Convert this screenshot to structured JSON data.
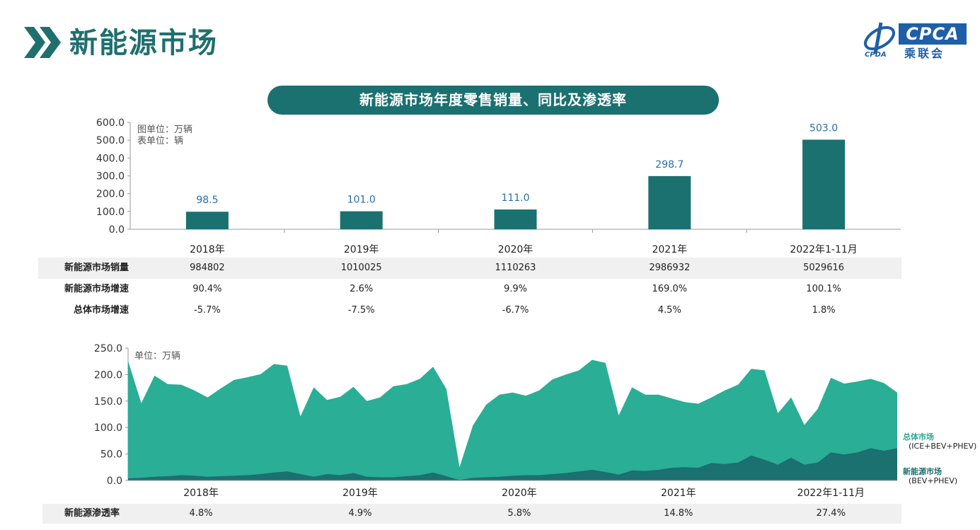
{
  "header": {
    "title": "新能源市场",
    "logo_text": "CPCA",
    "logo_cn": "乘联会",
    "logo_small": "CPDA"
  },
  "banner": {
    "title": "新能源市场年度零售销量、同比及渗透率"
  },
  "colors": {
    "bar": "#1b7070",
    "total_area": "#2aae95",
    "nev_area": "#1b7070",
    "banner": "#1b7070",
    "value_label": "#2a6fa8"
  },
  "chart_data": [
    {
      "type": "bar",
      "title": "",
      "unit_note_1": "图单位：万辆",
      "unit_note_2": "表单位：辆",
      "categories": [
        "2018年",
        "2019年",
        "2020年",
        "2021年",
        "2022年1-11月"
      ],
      "values": [
        98.5,
        101.0,
        111.0,
        298.7,
        503.0
      ],
      "value_labels": [
        "98.5",
        "101.0",
        "111.0",
        "298.7",
        "503.0"
      ],
      "ylim": [
        0,
        600
      ],
      "yticks": [
        "0.0",
        "100.0",
        "200.0",
        "300.0",
        "400.0",
        "500.0",
        "600.0"
      ],
      "table": {
        "rows": [
          {
            "label": "新能源市场销量",
            "values": [
              "984802",
              "1010025",
              "1110263",
              "2986932",
              "5029616"
            ]
          },
          {
            "label": "新能源市场增速",
            "values": [
              "90.4%",
              "2.6%",
              "9.9%",
              "169.0%",
              "100.1%"
            ]
          },
          {
            "label": "总体市场增速",
            "values": [
              "-5.7%",
              "-7.5%",
              "-6.7%",
              "4.5%",
              "1.8%"
            ]
          }
        ]
      }
    },
    {
      "type": "area",
      "unit_note": "单位：万辆",
      "ylim": [
        0,
        250
      ],
      "yticks": [
        "0.0",
        "50.0",
        "100.0",
        "150.0",
        "200.0",
        "250.0"
      ],
      "year_labels": [
        "2018年",
        "2019年",
        "2020年",
        "2021年",
        "2022年1-11月"
      ],
      "x": [
        "2018-01",
        "2018-02",
        "2018-03",
        "2018-04",
        "2018-05",
        "2018-06",
        "2018-07",
        "2018-08",
        "2018-09",
        "2018-10",
        "2018-11",
        "2018-12",
        "2019-01",
        "2019-02",
        "2019-03",
        "2019-04",
        "2019-05",
        "2019-06",
        "2019-07",
        "2019-08",
        "2019-09",
        "2019-10",
        "2019-11",
        "2019-12",
        "2020-01",
        "2020-02",
        "2020-03",
        "2020-04",
        "2020-05",
        "2020-06",
        "2020-07",
        "2020-08",
        "2020-09",
        "2020-10",
        "2020-11",
        "2020-12",
        "2021-01",
        "2021-02",
        "2021-03",
        "2021-04",
        "2021-05",
        "2021-06",
        "2021-07",
        "2021-08",
        "2021-09",
        "2021-10",
        "2021-11",
        "2021-12",
        "2022-01",
        "2022-02",
        "2022-03",
        "2022-04",
        "2022-05",
        "2022-06",
        "2022-07",
        "2022-08",
        "2022-09",
        "2022-10",
        "2022-11"
      ],
      "series": [
        {
          "name": "总体市场",
          "sub": "(ICE+BEV+PHEV)",
          "values": [
            226,
            146,
            198,
            182,
            181,
            170,
            157,
            174,
            190,
            195,
            201,
            220,
            217,
            121,
            176,
            152,
            158,
            177,
            150,
            157,
            178,
            182,
            192,
            215,
            173,
            25,
            104,
            143,
            162,
            166,
            160,
            170,
            191,
            200,
            208,
            228,
            222,
            123,
            176,
            162,
            162,
            155,
            148,
            145,
            157,
            170,
            181,
            211,
            208,
            127,
            157,
            105,
            135,
            194,
            183,
            187,
            192,
            184,
            166
          ]
        },
        {
          "name": "新能源市场",
          "sub": "(BEV+PHEV)",
          "values": [
            4,
            5,
            7,
            8,
            10,
            9,
            7,
            8,
            9,
            10,
            12,
            15,
            17,
            12,
            7,
            12,
            10,
            14,
            7,
            6,
            6,
            8,
            10,
            15,
            8,
            1,
            5,
            6,
            7,
            9,
            10,
            10,
            12,
            14,
            17,
            20,
            16,
            11,
            19,
            18,
            20,
            24,
            25,
            24,
            33,
            31,
            34,
            47,
            39,
            30,
            43,
            30,
            34,
            53,
            49,
            53,
            61,
            56,
            61
          ]
        }
      ]
    }
  ],
  "penetration": {
    "label": "新能源渗透率",
    "values": [
      "4.8%",
      "4.9%",
      "5.8%",
      "14.8%",
      "27.4%"
    ]
  }
}
